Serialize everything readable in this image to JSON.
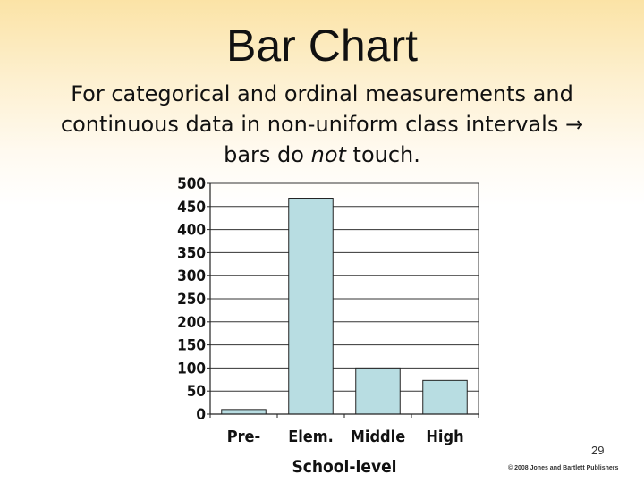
{
  "slide": {
    "title": "Bar Chart",
    "subtitle_line1": "For categorical and ordinal measurements and",
    "subtitle_line2": "continuous data in non-uniform class intervals",
    "subtitle_arrow": "→",
    "subtitle_line3_before": "bars do ",
    "subtitle_line3_emphasis": "not",
    "subtitle_line3_after": " touch.",
    "page_number": "29",
    "copyright": "© 2008 Jones and Bartlett Publishers"
  },
  "chart_data": {
    "type": "bar",
    "title": "",
    "xlabel": "School-level",
    "ylabel": "",
    "categories": [
      "Pre-",
      "Elem.",
      "Middle",
      "High"
    ],
    "values": [
      10,
      468,
      100,
      73
    ],
    "ylim": [
      0,
      500
    ],
    "yticks": [
      "0",
      "50",
      "100",
      "150",
      "200",
      "250",
      "300",
      "350",
      "400",
      "450",
      "500"
    ],
    "grid": true,
    "legend": "none",
    "bar_color": "#b8dde2",
    "bar_edge_color": "#222222"
  }
}
